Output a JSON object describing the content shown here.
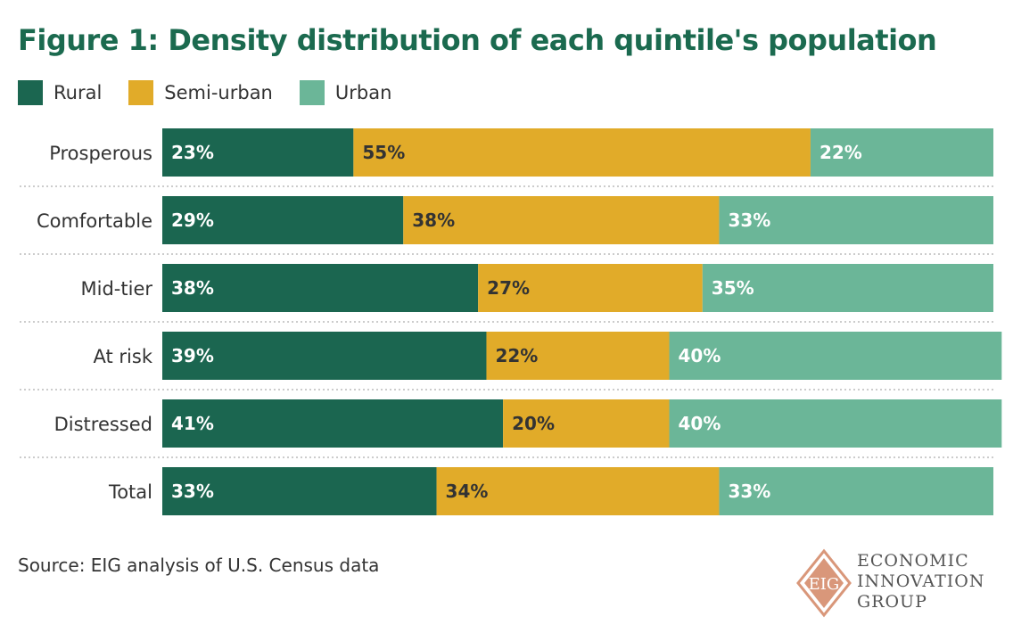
{
  "chart_data": {
    "type": "bar",
    "orientation": "horizontal",
    "stacked": true,
    "title": "Figure 1: Density distribution of each quintile's population",
    "categories": [
      "Prosperous",
      "Comfortable",
      "Mid-tier",
      "At risk",
      "Distressed",
      "Total"
    ],
    "series": [
      {
        "name": "Rural",
        "color": "#1b6650",
        "label_color": "#ffffff",
        "values": [
          23,
          29,
          38,
          39,
          41,
          33
        ]
      },
      {
        "name": "Semi-urban",
        "color": "#e1ab29",
        "label_color": "#333333",
        "values": [
          55,
          38,
          27,
          22,
          20,
          34
        ]
      },
      {
        "name": "Urban",
        "color": "#6bb698",
        "label_color": "#ffffff",
        "values": [
          22,
          33,
          35,
          40,
          40,
          33
        ]
      }
    ],
    "value_suffix": "%",
    "xlim": [
      0,
      100
    ],
    "xlabel": "",
    "ylabel": "",
    "grid": false,
    "legend_position": "top-left"
  },
  "source": "Source: EIG analysis of U.S. Census data",
  "logo": {
    "monogram": "EIG",
    "line1": "ECONOMIC",
    "line2": "INNOVATION",
    "line3": "GROUP",
    "color": "#d9977a"
  }
}
